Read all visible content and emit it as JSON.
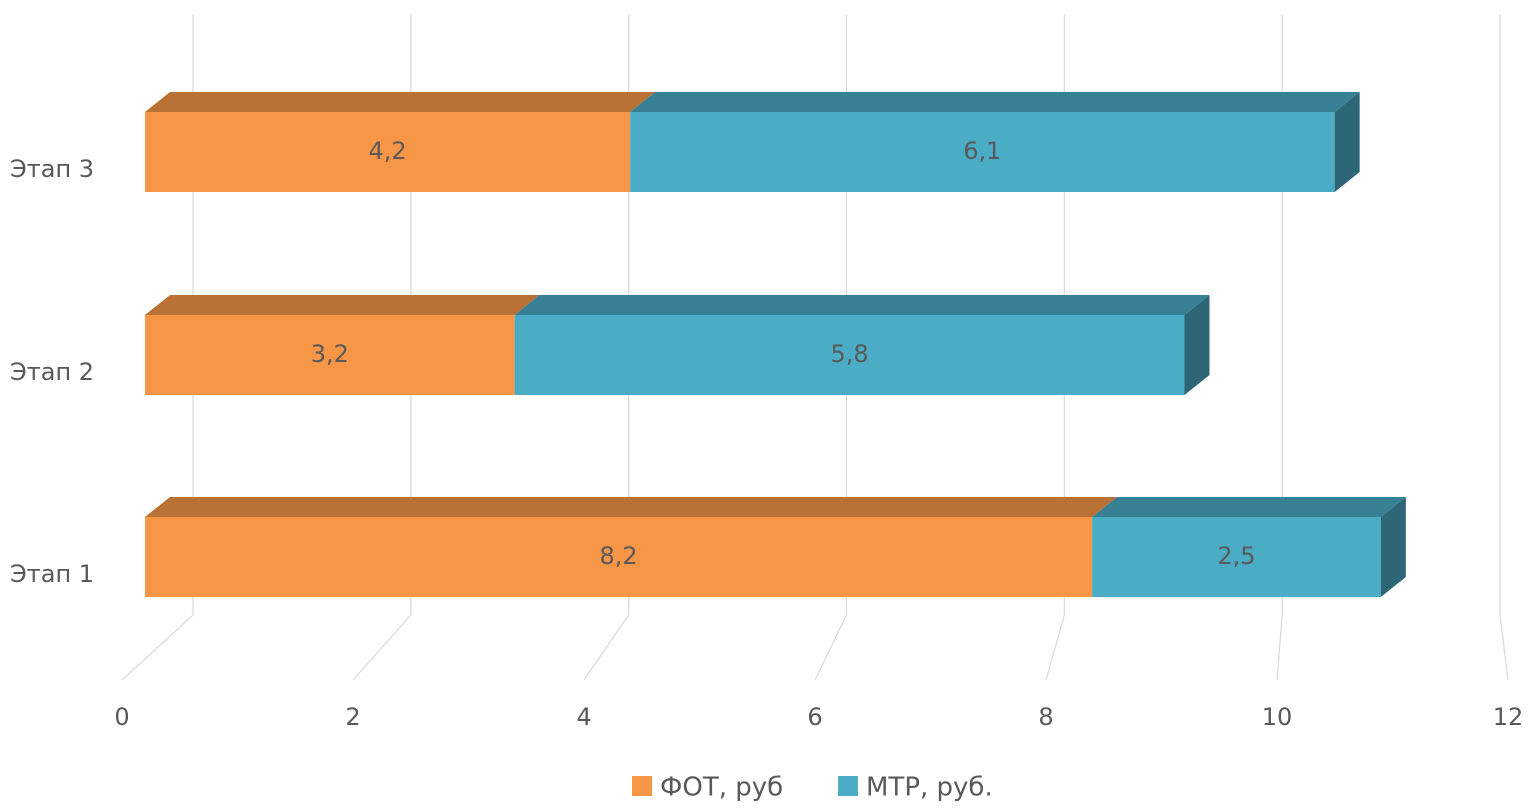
{
  "chart_data": {
    "type": "bar3d-stacked-horizontal",
    "categories": [
      "Этап 1",
      "Этап 2",
      "Этап 3"
    ],
    "series": [
      {
        "name": "ФОТ, руб",
        "color": "#f79646",
        "values": [
          8.2,
          3.2,
          4.2
        ],
        "value_labels": [
          "8,2",
          "3,2",
          "4,2"
        ]
      },
      {
        "name": "МТР, руб.",
        "color": "#4bacc6",
        "values": [
          2.5,
          5.8,
          6.1
        ],
        "value_labels": [
          "2,5",
          "5,8",
          "6,1"
        ]
      }
    ],
    "xlim": [
      0,
      12
    ],
    "xticks": [
      0,
      2,
      4,
      6,
      8,
      10,
      12
    ],
    "grid": true,
    "legend": "bottom"
  }
}
